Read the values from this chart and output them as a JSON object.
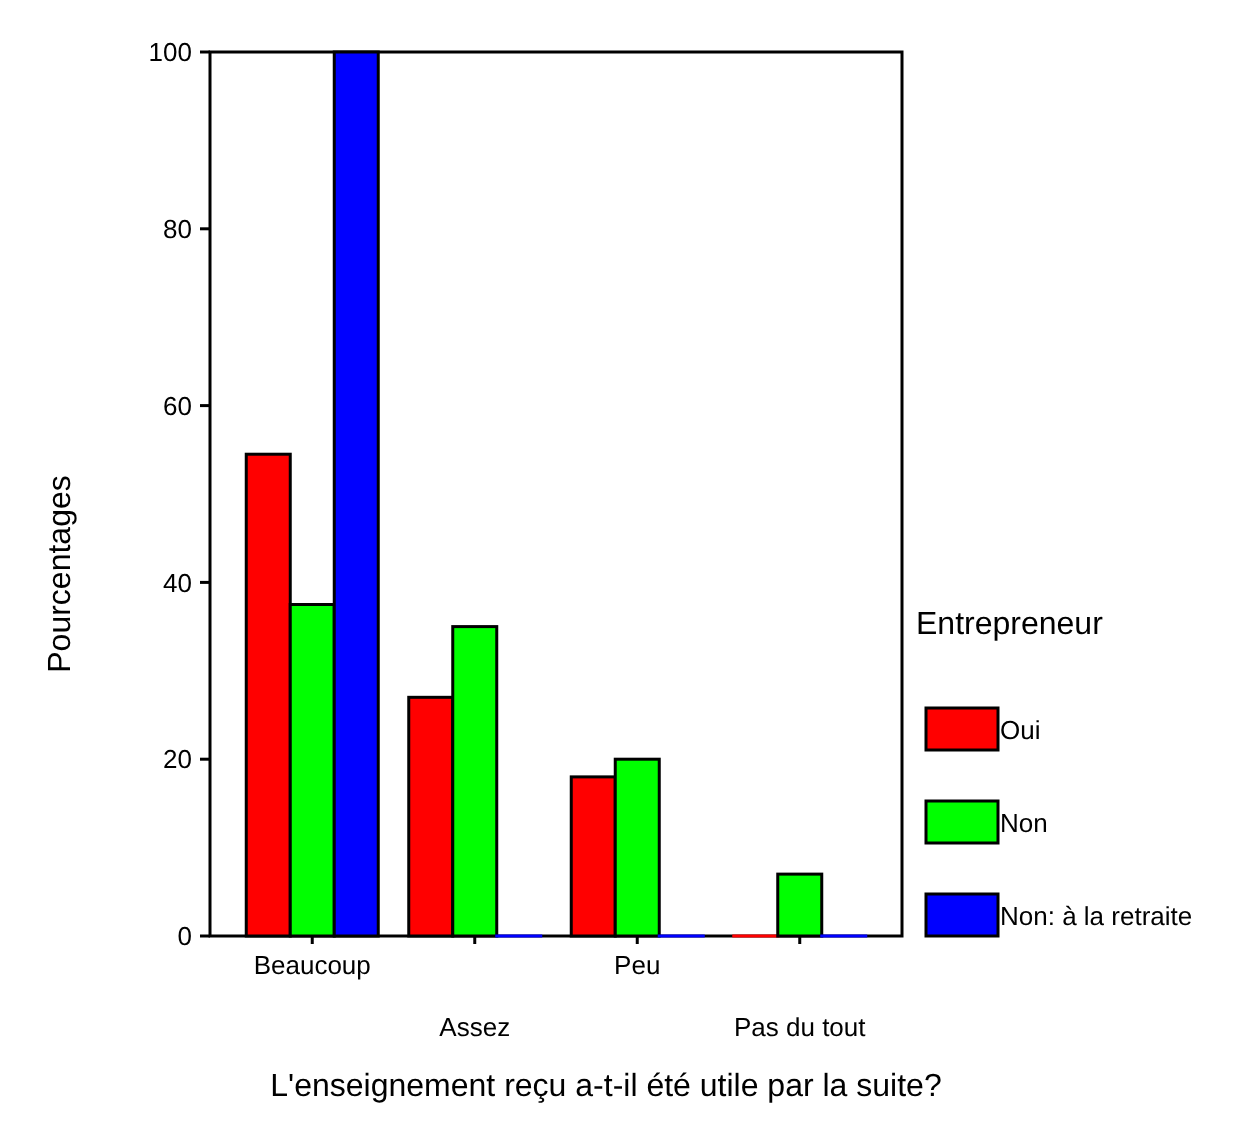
{
  "chart_data": {
    "type": "bar",
    "xlabel": "L'enseignement reçu a-t-il été utile par la suite?",
    "ylabel": "Pourcentages",
    "legend_title": "Entrepreneur",
    "categories": [
      "Beaucoup",
      "Assez",
      "Peu",
      "Pas du tout"
    ],
    "series": [
      {
        "name": "Oui",
        "color": "#ff0000",
        "values": [
          54.5,
          27,
          18,
          0
        ]
      },
      {
        "name": "Non",
        "color": "#00ff00",
        "values": [
          37.5,
          35,
          20,
          7
        ]
      },
      {
        "name": "Non: à la retraite",
        "color": "#0000ff",
        "values": [
          100,
          0,
          0,
          0
        ]
      }
    ],
    "ylim": [
      0,
      100
    ],
    "yticks": [
      0,
      20,
      40,
      60,
      80,
      100
    ],
    "legend": "right"
  }
}
